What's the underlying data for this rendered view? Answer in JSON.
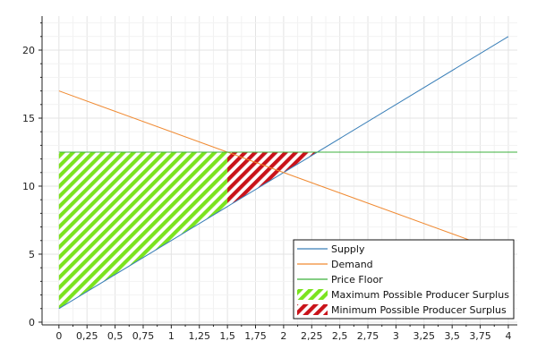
{
  "chart_data": {
    "type": "line",
    "title": "",
    "xlabel": "",
    "ylabel": "",
    "xlim": [
      -0.15,
      4.08
    ],
    "ylim": [
      -0.2,
      22.5
    ],
    "x_ticks": [
      {
        "value": 0,
        "label": "0"
      },
      {
        "value": 0.25,
        "label": "0,25"
      },
      {
        "value": 0.5,
        "label": "0,5"
      },
      {
        "value": 0.75,
        "label": "0,75"
      },
      {
        "value": 1,
        "label": "1"
      },
      {
        "value": 1.25,
        "label": "1,25"
      },
      {
        "value": 1.5,
        "label": "1,5"
      },
      {
        "value": 1.75,
        "label": "1,75"
      },
      {
        "value": 2,
        "label": "2"
      },
      {
        "value": 2.25,
        "label": "2,25"
      },
      {
        "value": 2.5,
        "label": "2,5"
      },
      {
        "value": 2.75,
        "label": "2,75"
      },
      {
        "value": 3,
        "label": "3"
      },
      {
        "value": 3.25,
        "label": "3,25"
      },
      {
        "value": 3.5,
        "label": "3,5"
      },
      {
        "value": 3.75,
        "label": "3,75"
      },
      {
        "value": 4,
        "label": "4"
      }
    ],
    "y_ticks": [
      {
        "value": 0,
        "label": "0"
      },
      {
        "value": 5,
        "label": "5"
      },
      {
        "value": 10,
        "label": "10"
      },
      {
        "value": 15,
        "label": "15"
      },
      {
        "value": 20,
        "label": "20"
      }
    ],
    "grid": true,
    "legend_position": "bottom-right",
    "series": [
      {
        "name": "Supply",
        "type": "line",
        "color": "#3a7fb8",
        "x": [
          0,
          4
        ],
        "y": [
          1,
          21
        ]
      },
      {
        "name": "Demand",
        "type": "line",
        "color": "#f08a32",
        "x": [
          0,
          3.7
        ],
        "y": [
          17,
          5.9
        ]
      },
      {
        "name": "Price Floor",
        "type": "line",
        "color": "#3cb13c",
        "x": [
          0,
          4.08
        ],
        "y": [
          12.5,
          12.5
        ]
      },
      {
        "name": "Maximum Possible Producer Surplus",
        "type": "area",
        "pattern": "hatch",
        "color": "#7be31f",
        "x": [
          0,
          0,
          2.3
        ],
        "y": [
          1,
          12.5,
          12.5
        ]
      },
      {
        "name": "Minimum Possible Producer Surplus",
        "type": "area",
        "pattern": "hatch",
        "color": "#c9131a",
        "x": [
          1.5,
          2.3
        ],
        "y": [
          12.5,
          12.5
        ]
      }
    ]
  }
}
